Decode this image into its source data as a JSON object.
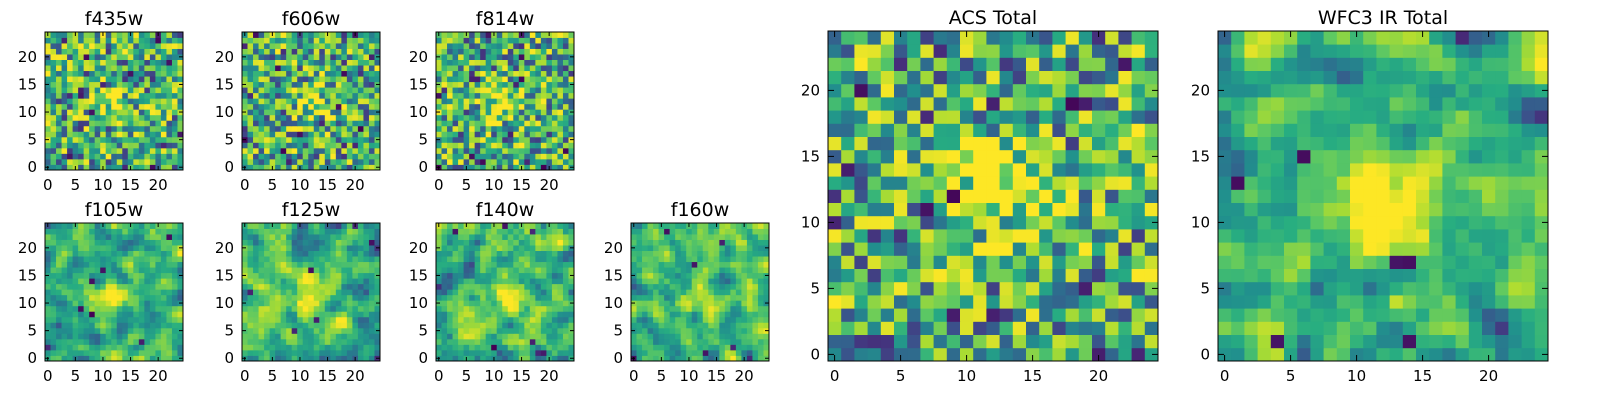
{
  "chart_data": {
    "type": "heatmap",
    "colormap": "viridis",
    "grid_size": [
      25,
      25
    ],
    "panels": [
      {
        "title": "f435w",
        "x_ticks": [
          "0",
          "5",
          "10",
          "15",
          "20"
        ],
        "y_ticks": [
          "0",
          "5",
          "10",
          "15",
          "20"
        ],
        "xlim": [
          -0.5,
          24.5
        ],
        "ylim": [
          -0.5,
          24.5
        ],
        "seed": 11,
        "smooth": 0,
        "hotspot": [
          12,
          12
        ],
        "hot_strength": 0.25
      },
      {
        "title": "f606w",
        "x_ticks": [
          "0",
          "5",
          "10",
          "15",
          "20"
        ],
        "y_ticks": [
          "0",
          "5",
          "10",
          "15",
          "20"
        ],
        "xlim": [
          -0.5,
          24.5
        ],
        "ylim": [
          -0.5,
          24.5
        ],
        "seed": 23,
        "smooth": 0,
        "hotspot": [
          12,
          12
        ],
        "hot_strength": 0.3
      },
      {
        "title": "f814w",
        "x_ticks": [
          "0",
          "5",
          "10",
          "15",
          "20"
        ],
        "y_ticks": [
          "0",
          "5",
          "10",
          "15",
          "20"
        ],
        "xlim": [
          -0.5,
          24.5
        ],
        "ylim": [
          -0.5,
          24.5
        ],
        "seed": 37,
        "smooth": 0,
        "hotspot": [
          12,
          12
        ],
        "hot_strength": 0.35
      },
      {
        "title": "f105w",
        "x_ticks": [
          "0",
          "5",
          "10",
          "15",
          "20"
        ],
        "y_ticks": [
          "0",
          "5",
          "10",
          "15",
          "20"
        ],
        "xlim": [
          -0.5,
          24.5
        ],
        "ylim": [
          -0.5,
          24.5
        ],
        "seed": 41,
        "smooth": 1,
        "hotspot": [
          12,
          11
        ],
        "hot_strength": 0.4
      },
      {
        "title": "f125w",
        "x_ticks": [
          "0",
          "5",
          "10",
          "15",
          "20"
        ],
        "y_ticks": [
          "0",
          "5",
          "10",
          "15",
          "20"
        ],
        "xlim": [
          -0.5,
          24.5
        ],
        "ylim": [
          -0.5,
          24.5
        ],
        "seed": 53,
        "smooth": 1,
        "hotspot": [
          12,
          11
        ],
        "hot_strength": 0.3
      },
      {
        "title": "f140w",
        "x_ticks": [
          "0",
          "5",
          "10",
          "15",
          "20"
        ],
        "y_ticks": [
          "0",
          "5",
          "10",
          "15",
          "20"
        ],
        "xlim": [
          -0.5,
          24.5
        ],
        "ylim": [
          -0.5,
          24.5
        ],
        "seed": 67,
        "smooth": 1,
        "hotspot": [
          12,
          11
        ],
        "hot_strength": 0.25
      },
      {
        "title": "f160w",
        "x_ticks": [
          "0",
          "5",
          "10",
          "15",
          "20"
        ],
        "y_ticks": [
          "0",
          "5",
          "10",
          "15",
          "20"
        ],
        "xlim": [
          -0.5,
          24.5
        ],
        "ylim": [
          -0.5,
          24.5
        ],
        "seed": 79,
        "smooth": 1,
        "hotspot": [
          12,
          11
        ],
        "hot_strength": 0.2
      },
      {
        "title": "ACS Total",
        "x_ticks": [
          "0",
          "5",
          "10",
          "15",
          "20"
        ],
        "y_ticks": [
          "0",
          "5",
          "10",
          "15",
          "20"
        ],
        "xlim": [
          -0.5,
          24.5
        ],
        "ylim": [
          -0.5,
          24.5
        ],
        "seed": 97,
        "smooth": 0,
        "hotspot": [
          12,
          13
        ],
        "hot_strength": 0.45
      },
      {
        "title": "WFC3 IR Total",
        "x_ticks": [
          "0",
          "5",
          "10",
          "15",
          "20"
        ],
        "y_ticks": [
          "0",
          "5",
          "10",
          "15",
          "20"
        ],
        "xlim": [
          -0.5,
          24.5
        ],
        "ylim": [
          -0.5,
          24.5
        ],
        "seed": 113,
        "smooth": 1,
        "hotspot": [
          12,
          11
        ],
        "hot_strength": 0.5
      }
    ]
  }
}
